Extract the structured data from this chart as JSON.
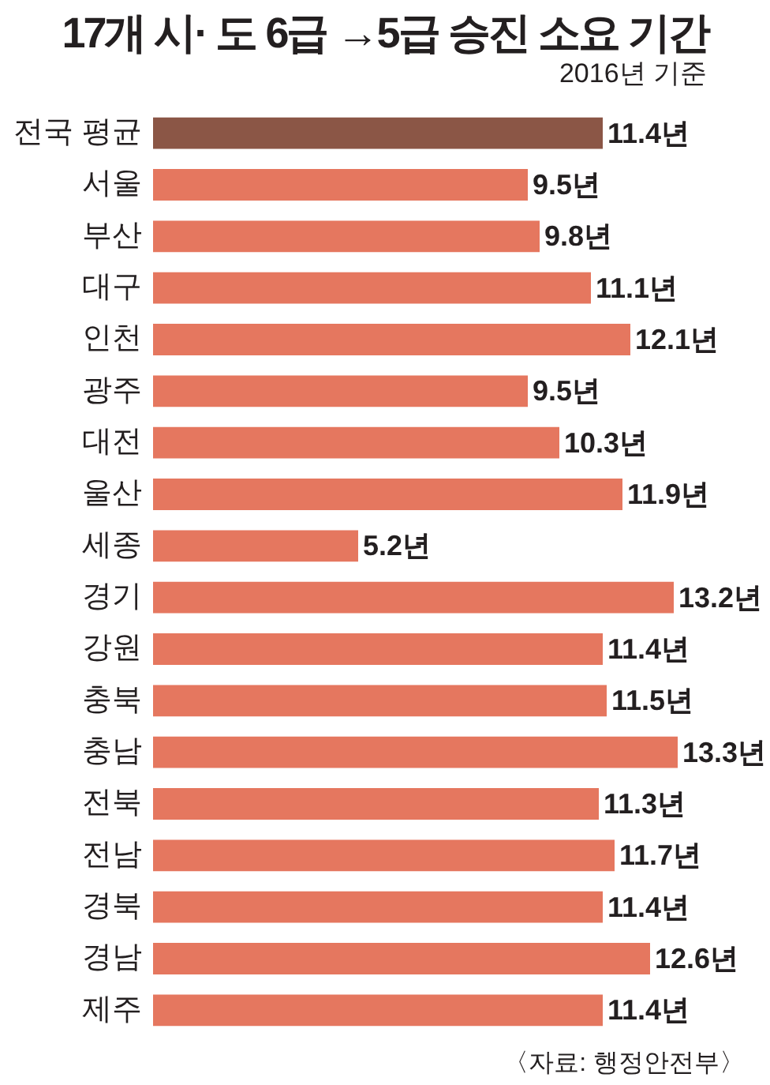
{
  "chart_data": {
    "type": "bar",
    "orientation": "horizontal",
    "title": "17개 시· 도 6급 →5급 승진 소요 기간",
    "subtitle": "2016년 기준",
    "annotations": [
      "〈자료: 행정안전부〉"
    ],
    "categories": [
      "전국 평균",
      "서울",
      "부산",
      "대구",
      "인천",
      "광주",
      "대전",
      "울산",
      "세종",
      "경기",
      "강원",
      "충북",
      "충남",
      "전북",
      "전남",
      "경북",
      "경남",
      "제주"
    ],
    "values": [
      11.4,
      9.5,
      9.8,
      11.1,
      12.1,
      9.5,
      10.3,
      11.9,
      5.2,
      13.2,
      11.4,
      11.5,
      13.3,
      11.3,
      11.7,
      11.4,
      12.6,
      11.4
    ],
    "colors": [
      "#8b5646",
      "#e5775f",
      "#e5775f",
      "#e5775f",
      "#e5775f",
      "#e5775f",
      "#e5775f",
      "#e5775f",
      "#e5775f",
      "#e5775f",
      "#e5775f",
      "#e5775f",
      "#e5775f",
      "#e5775f",
      "#e5775f",
      "#e5775f",
      "#e5775f",
      "#e5775f"
    ],
    "value_labels": [
      "11.4년",
      "9.5년",
      "9.8년",
      "11.1년",
      "12.1년",
      "9.5년",
      "10.3년",
      "11.9년",
      "5.2년",
      "13.2년",
      "11.4년",
      "11.5년",
      "13.3년",
      "11.3년",
      "11.7년",
      "11.4년",
      "12.6년",
      "11.4년"
    ],
    "tick_labels": "y"
  }
}
